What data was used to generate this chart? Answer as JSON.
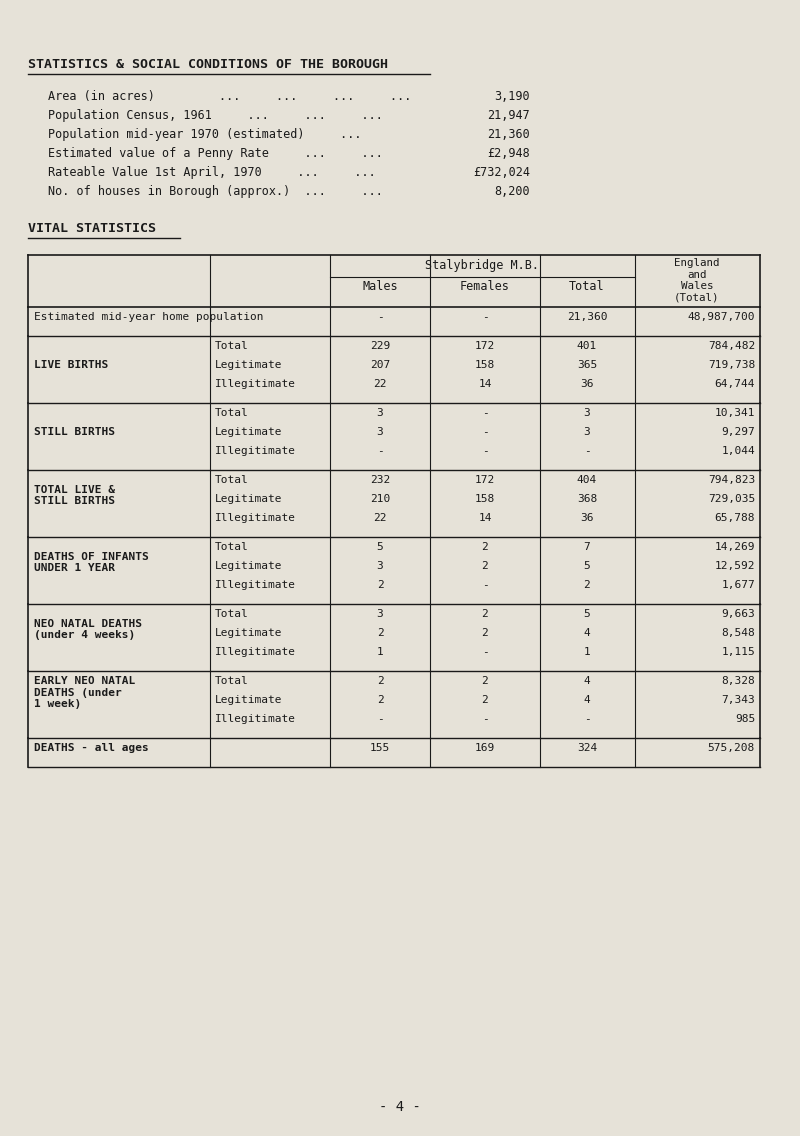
{
  "bg_color": "#e6e2d8",
  "text_color": "#1a1a1a",
  "title": "STATISTICS & SOCIAL CONDITIONS OF THE BOROUGH",
  "stats_data": [
    {
      "label": "Area (in acres)         ...     ...     ...     ...",
      "value": "3,190"
    },
    {
      "label": "Population Census, 1961     ...     ...     ...",
      "value": "21,947"
    },
    {
      "label": "Population mid-year 1970 (estimated)     ...",
      "value": "21,360"
    },
    {
      "label": "Estimated value of a Penny Rate     ...     ...",
      "value": "£2,948"
    },
    {
      "label": "Rateable Value 1st April, 1970     ...     ...",
      "value": "£732,024"
    },
    {
      "label": "No. of houses in Borough (approx.)  ...     ...",
      "value": "8,200"
    }
  ],
  "subtitle": "VITAL STATISTICS",
  "sections": [
    {
      "col1": "Estimated mid-year home population",
      "col1_lines": 1,
      "col1_bold": false,
      "rows": [
        {
          "c2": "",
          "c3": "-",
          "c4": "-",
          "c5": "21,360",
          "c6": "48,987,700"
        }
      ]
    },
    {
      "col1": "LIVE BIRTHS",
      "col1_lines": 1,
      "col1_bold": true,
      "rows": [
        {
          "c2": "Total",
          "c3": "229",
          "c4": "172",
          "c5": "401",
          "c6": "784,482"
        },
        {
          "c2": "Legitimate",
          "c3": "207",
          "c4": "158",
          "c5": "365",
          "c6": "719,738"
        },
        {
          "c2": "Illegitimate",
          "c3": "22",
          "c4": "14",
          "c5": "36",
          "c6": "64,744"
        }
      ]
    },
    {
      "col1": "STILL BIRTHS",
      "col1_lines": 1,
      "col1_bold": true,
      "rows": [
        {
          "c2": "Total",
          "c3": "3",
          "c4": "-",
          "c5": "3",
          "c6": "10,341"
        },
        {
          "c2": "Legitimate",
          "c3": "3",
          "c4": "-",
          "c5": "3",
          "c6": "9,297"
        },
        {
          "c2": "Illegitimate",
          "c3": "-",
          "c4": "-",
          "c5": "-",
          "c6": "1,044"
        }
      ]
    },
    {
      "col1": "TOTAL LIVE &\nSTILL BIRTHS",
      "col1_lines": 2,
      "col1_bold": true,
      "rows": [
        {
          "c2": "Total",
          "c3": "232",
          "c4": "172",
          "c5": "404",
          "c6": "794,823"
        },
        {
          "c2": "Legitimate",
          "c3": "210",
          "c4": "158",
          "c5": "368",
          "c6": "729,035"
        },
        {
          "c2": "Illegitimate",
          "c3": "22",
          "c4": "14",
          "c5": "36",
          "c6": "65,788"
        }
      ]
    },
    {
      "col1": "DEATHS OF INFANTS\nUNDER 1 YEAR",
      "col1_lines": 2,
      "col1_bold": true,
      "rows": [
        {
          "c2": "Total",
          "c3": "5",
          "c4": "2",
          "c5": "7",
          "c6": "14,269"
        },
        {
          "c2": "Legitimate",
          "c3": "3",
          "c4": "2",
          "c5": "5",
          "c6": "12,592"
        },
        {
          "c2": "Illegitimate",
          "c3": "2",
          "c4": "-",
          "c5": "2",
          "c6": "1,677"
        }
      ]
    },
    {
      "col1": "NEO NATAL DEATHS\n(under 4 weeks)",
      "col1_lines": 2,
      "col1_bold": true,
      "rows": [
        {
          "c2": "Total",
          "c3": "3",
          "c4": "2",
          "c5": "5",
          "c6": "9,663"
        },
        {
          "c2": "Legitimate",
          "c3": "2",
          "c4": "2",
          "c5": "4",
          "c6": "8,548"
        },
        {
          "c2": "Illegitimate",
          "c3": "1",
          "c4": "-",
          "c5": "1",
          "c6": "1,115"
        }
      ]
    },
    {
      "col1": "EARLY NEO NATAL\nDEATHS (under\n1 week)",
      "col1_lines": 3,
      "col1_bold": true,
      "rows": [
        {
          "c2": "Total",
          "c3": "2",
          "c4": "2",
          "c5": "4",
          "c6": "8,328"
        },
        {
          "c2": "Legitimate",
          "c3": "2",
          "c4": "2",
          "c5": "4",
          "c6": "7,343"
        },
        {
          "c2": "Illegitimate",
          "c3": "-",
          "c4": "-",
          "c5": "-",
          "c6": "985"
        }
      ]
    },
    {
      "col1": "DEATHS - all ages",
      "col1_lines": 1,
      "col1_bold": true,
      "rows": [
        {
          "c2": "",
          "c3": "155",
          "c4": "169",
          "c5": "324",
          "c6": "575,208"
        }
      ]
    }
  ],
  "footer": "- 4 -"
}
